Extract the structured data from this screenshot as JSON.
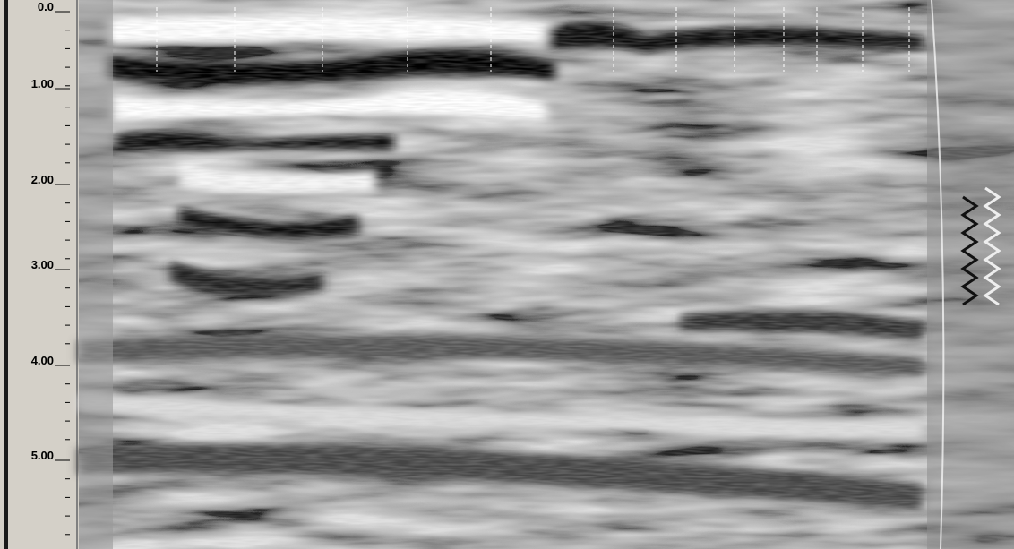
{
  "depth_axis": {
    "labels": [
      "0.0",
      "1.00",
      "2.00",
      "3.00",
      "4.00",
      "5.00"
    ]
  }
}
